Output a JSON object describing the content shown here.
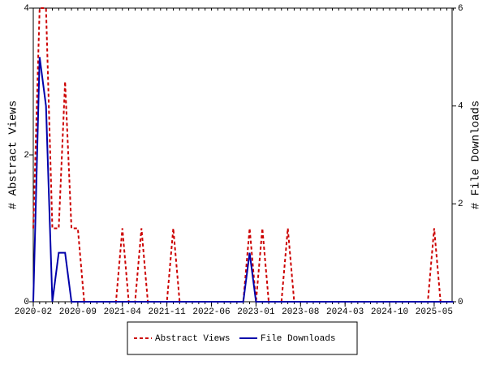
{
  "chart_data": {
    "type": "line",
    "y_label": "# Abstract Views",
    "y2_label": "# File Downloads",
    "categories": [
      "2020-02",
      null,
      null,
      null,
      null,
      null,
      null,
      "2020-09",
      null,
      null,
      null,
      null,
      null,
      null,
      "2021-04",
      null,
      null,
      null,
      null,
      null,
      null,
      "2021-11",
      null,
      null,
      null,
      null,
      null,
      null,
      "2022-06",
      null,
      null,
      null,
      null,
      null,
      null,
      "2023-01",
      null,
      null,
      null,
      null,
      null,
      null,
      "2023-08",
      null,
      null,
      null,
      null,
      null,
      null,
      "2024-03",
      null,
      null,
      null,
      null,
      null,
      null,
      "2024-10",
      null,
      null,
      null,
      null,
      null,
      null,
      "2025-05",
      null,
      null,
      null
    ],
    "series": [
      {
        "name": "Abstract Views",
        "color": "#cc0000",
        "dash": true,
        "axis": "y",
        "values": [
          1,
          4,
          4,
          1,
          1,
          3,
          1,
          1,
          0,
          0,
          0,
          0,
          0,
          0,
          1,
          0,
          0,
          1,
          0,
          0,
          0,
          0,
          1,
          0,
          0,
          0,
          0,
          0,
          0,
          0,
          0,
          0,
          0,
          0,
          1,
          0,
          1,
          0,
          0,
          0,
          1,
          0,
          0,
          0,
          0,
          0,
          0,
          0,
          0,
          0,
          0,
          0,
          0,
          0,
          0,
          0,
          0,
          0,
          0,
          0,
          0,
          0,
          0,
          1,
          0,
          0,
          0
        ]
      },
      {
        "name": "File Downloads",
        "color": "#0000aa",
        "dash": false,
        "axis": "y2",
        "values": [
          0,
          5,
          4,
          0,
          1,
          1,
          0,
          0,
          0,
          0,
          0,
          0,
          0,
          0,
          0,
          0,
          0,
          0,
          0,
          0,
          0,
          0,
          0,
          0,
          0,
          0,
          0,
          0,
          0,
          0,
          0,
          0,
          0,
          0,
          1,
          0,
          0,
          0,
          0,
          0,
          0,
          0,
          0,
          0,
          0,
          0,
          0,
          0,
          0,
          0,
          0,
          0,
          0,
          0,
          0,
          0,
          0,
          0,
          0,
          0,
          0,
          0,
          0,
          0,
          0,
          0,
          0
        ]
      }
    ],
    "ylim": [
      0,
      4
    ],
    "yticks": [
      0,
      2,
      4
    ],
    "y2lim": [
      0,
      6
    ],
    "y2ticks": [
      0,
      2,
      4,
      6
    ]
  }
}
